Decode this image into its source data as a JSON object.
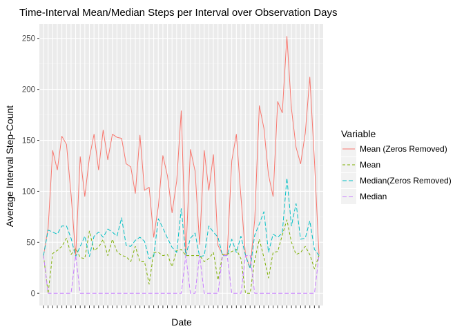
{
  "chart_data": {
    "type": "line",
    "title": "Time-Interval Mean/Median Steps per Interval over Observation Days",
    "xlabel": "Date",
    "ylabel": "Average Interval Step-Count",
    "ylim": [
      -12,
      264
    ],
    "yticks": [
      0,
      50,
      100,
      150,
      200,
      250
    ],
    "n_days": 61,
    "grid": true,
    "legend": {
      "title": "Variable",
      "position": "right"
    },
    "series": [
      {
        "name": "Mean (Zeros Removed)",
        "color": "#F8766D",
        "dash": "solid",
        "values": [
          37,
          64,
          140,
          121,
          154,
          146,
          97,
          37,
          134,
          95,
          133,
          156,
          121,
          160,
          131,
          156,
          153,
          152,
          127,
          124,
          98,
          155,
          101,
          104,
          55,
          85,
          135,
          115,
          79,
          110,
          179,
          37,
          141,
          120,
          48,
          140,
          101,
          136,
          47,
          38,
          38,
          130,
          156,
          95,
          37,
          25,
          72,
          184,
          162,
          116,
          95,
          188,
          177,
          252,
          181,
          143,
          127,
          157,
          212,
          130,
          38
        ]
      },
      {
        "name": "Mean",
        "color": "#7CAE00",
        "dash": "4,3",
        "values": [
          37,
          0,
          39,
          42,
          46,
          54,
          38,
          44,
          35,
          34,
          61,
          42,
          45,
          53,
          37,
          53,
          41,
          37,
          36,
          31,
          46,
          31,
          31,
          9,
          40,
          40,
          37,
          38,
          26,
          42,
          43,
          37,
          37,
          37,
          37,
          31,
          34,
          40,
          13,
          38,
          38,
          41,
          43,
          34,
          0,
          0,
          33,
          53,
          35,
          15,
          40,
          41,
          57,
          72,
          50,
          38,
          40,
          46,
          38,
          24,
          37
        ]
      },
      {
        "name": "Median(Zeros Removed)",
        "color": "#00BFC4",
        "dash": "6,3",
        "values": [
          37,
          62,
          60,
          58,
          66,
          66,
          54,
          36,
          46,
          56,
          36,
          56,
          60,
          55,
          63,
          60,
          56,
          74,
          47,
          46,
          52,
          55,
          51,
          34,
          36,
          73,
          64,
          54,
          45,
          40,
          83,
          37,
          54,
          59,
          36,
          37,
          66,
          60,
          55,
          37,
          37,
          53,
          40,
          56,
          37,
          24,
          57,
          68,
          80,
          40,
          58,
          55,
          59,
          113,
          66,
          88,
          53,
          54,
          71,
          43,
          37
        ]
      },
      {
        "name": "Median",
        "color": "#C77CFF",
        "dash": "6,3",
        "values": [
          37,
          0,
          0,
          0,
          0,
          0,
          0,
          37,
          0,
          0,
          0,
          0,
          0,
          0,
          0,
          0,
          0,
          0,
          0,
          0,
          0,
          0,
          0,
          0,
          0,
          0,
          0,
          0,
          0,
          0,
          0,
          37,
          0,
          0,
          37,
          0,
          0,
          0,
          0,
          37,
          37,
          0,
          0,
          0,
          37,
          37,
          0,
          0,
          0,
          0,
          0,
          0,
          0,
          0,
          0,
          0,
          0,
          0,
          0,
          0,
          37
        ]
      }
    ]
  }
}
